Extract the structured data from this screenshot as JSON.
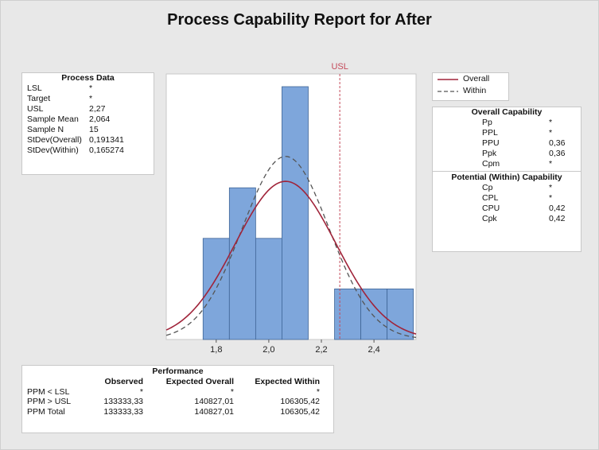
{
  "title": "Process Capability Report for After",
  "process_data": {
    "title": "Process Data",
    "rows": [
      {
        "label": "LSL",
        "value": "*"
      },
      {
        "label": "Target",
        "value": "*"
      },
      {
        "label": "USL",
        "value": "2,27"
      },
      {
        "label": "Sample Mean",
        "value": "2,064"
      },
      {
        "label": "Sample N",
        "value": "15"
      },
      {
        "label": "StDev(Overall)",
        "value": "0,191341"
      },
      {
        "label": "StDev(Within)",
        "value": "0,165274"
      }
    ]
  },
  "legend": {
    "overall": "Overall",
    "within": "Within",
    "overall_color": "#a0243a",
    "within_color": "#555555"
  },
  "overall_capability": {
    "title": "Overall Capability",
    "rows": [
      {
        "label": "Pp",
        "value": "*"
      },
      {
        "label": "PPL",
        "value": "*"
      },
      {
        "label": "PPU",
        "value": "0,36"
      },
      {
        "label": "Ppk",
        "value": "0,36"
      },
      {
        "label": "Cpm",
        "value": "*"
      }
    ]
  },
  "within_capability": {
    "title": "Potential (Within) Capability",
    "rows": [
      {
        "label": "Cp",
        "value": "*"
      },
      {
        "label": "CPL",
        "value": "*"
      },
      {
        "label": "CPU",
        "value": "0,42"
      },
      {
        "label": "Cpk",
        "value": "0,42"
      }
    ]
  },
  "performance": {
    "title": "Performance",
    "headers": [
      "",
      "Observed",
      "Expected Overall",
      "Expected Within"
    ],
    "rows": [
      {
        "label": "PPM < LSL",
        "observed": "*",
        "expected_overall": "*",
        "expected_within": "*"
      },
      {
        "label": "PPM > USL",
        "observed": "133333,33",
        "expected_overall": "140827,01",
        "expected_within": "106305,42"
      },
      {
        "label": "PPM Total",
        "observed": "133333,33",
        "expected_overall": "140827,01",
        "expected_within": "106305,42"
      }
    ]
  },
  "chart_data": {
    "type": "bar",
    "title": "Process Capability Report for After",
    "bins": [
      {
        "start": 1.75,
        "end": 1.85,
        "count": 2
      },
      {
        "start": 1.85,
        "end": 1.95,
        "count": 3
      },
      {
        "start": 1.95,
        "end": 2.05,
        "count": 2
      },
      {
        "start": 2.05,
        "end": 2.15,
        "count": 5
      },
      {
        "start": 2.15,
        "end": 2.25,
        "count": 0
      },
      {
        "start": 2.25,
        "end": 2.35,
        "count": 1
      },
      {
        "start": 2.35,
        "end": 2.45,
        "count": 1
      },
      {
        "start": 2.45,
        "end": 2.55,
        "count": 1
      }
    ],
    "x_ticks": [
      1.8,
      2.0,
      2.2,
      2.4
    ],
    "x_tick_labels": [
      "1,8",
      "2,0",
      "2,2",
      "2,4"
    ],
    "xlim": [
      1.61,
      2.56
    ],
    "ylim": [
      0,
      5.3
    ],
    "usl": 2.27,
    "usl_label": "USL",
    "mean": 2.064,
    "n": 15,
    "stdev_overall": 0.191341,
    "stdev_within": 0.165274,
    "bin_width": 0.1,
    "bar_color": "#7ea6db",
    "bar_edge_color": "#3f6596",
    "usl_color": "#c44a5a"
  }
}
